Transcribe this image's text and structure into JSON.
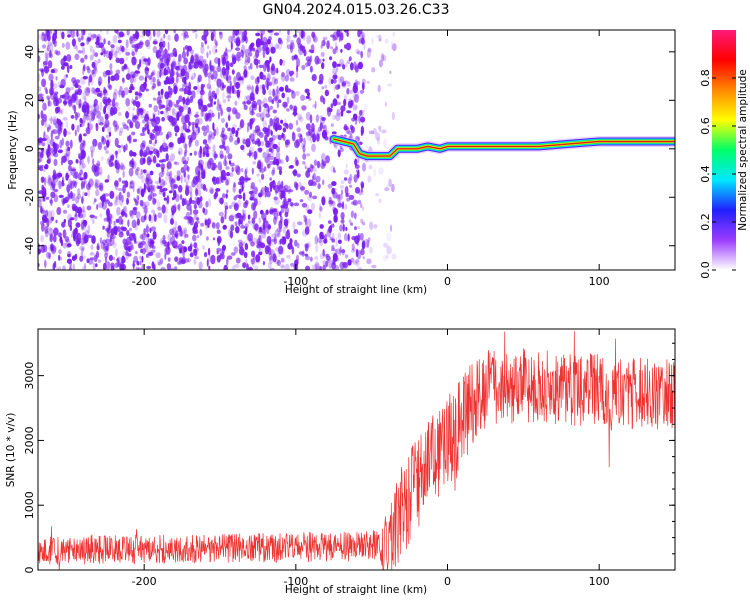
{
  "title": "GN04.2024.015.03.26.C33",
  "colors": {
    "snr_line": "#ee3333",
    "spectrogram_noise": "#7a1df0",
    "ridge_peak": "#e21a1a"
  },
  "chart_data": [
    {
      "type": "heatmap",
      "name_key": "spectrogram",
      "xlabel": "Height of straight line (km)",
      "ylabel": "Frequency (Hz)",
      "xlim": [
        -270,
        150
      ],
      "ylim": [
        -50,
        49
      ],
      "x_ticks": [
        -200,
        -100,
        0,
        100
      ],
      "y_ticks": [
        -40,
        -20,
        0,
        20,
        40
      ],
      "grid": false,
      "colorbar": {
        "label": "Normalized spectral amplitude",
        "range": [
          0,
          1
        ],
        "ticks": [
          "0.0",
          "0.2",
          "0.4",
          "0.6",
          "0.8"
        ],
        "colormap": [
          "#ffffff",
          "#9b3cff",
          "#2020ff",
          "#00e8ff",
          "#00ff66",
          "#ffff00",
          "#ff8800",
          "#ff0000",
          "#ff1a7a"
        ]
      },
      "noise_region": {
        "x_from": -270,
        "x_to": -55,
        "sparse_to": -35
      },
      "ridge": [
        {
          "x": -75,
          "f": 4
        },
        {
          "x": -62,
          "f": 2
        },
        {
          "x": -58,
          "f": -2
        },
        {
          "x": -53,
          "f": -3
        },
        {
          "x": -45,
          "f": -3
        },
        {
          "x": -38,
          "f": -3
        },
        {
          "x": -33,
          "f": 0
        },
        {
          "x": -20,
          "f": 0
        },
        {
          "x": -13,
          "f": 1
        },
        {
          "x": -5,
          "f": 0
        },
        {
          "x": 0,
          "f": 1
        },
        {
          "x": 15,
          "f": 1
        },
        {
          "x": 40,
          "f": 1
        },
        {
          "x": 60,
          "f": 1
        },
        {
          "x": 80,
          "f": 2
        },
        {
          "x": 100,
          "f": 3
        },
        {
          "x": 125,
          "f": 3
        },
        {
          "x": 150,
          "f": 3
        }
      ]
    },
    {
      "type": "line",
      "name_key": "snr",
      "xlabel": "Height of straight line (km)",
      "ylabel": "SNR (10 * v/v)",
      "xlim": [
        -270,
        150
      ],
      "ylim": [
        0,
        3720
      ],
      "x_ticks": [
        -200,
        -100,
        0,
        100
      ],
      "y_ticks": [
        0,
        1000,
        2000,
        3000
      ],
      "grid": false,
      "trend": [
        {
          "x": -270,
          "y": 300
        },
        {
          "x": -150,
          "y": 330
        },
        {
          "x": -60,
          "y": 360
        },
        {
          "x": -40,
          "y": 400
        },
        {
          "x": -30,
          "y": 900
        },
        {
          "x": -20,
          "y": 1300
        },
        {
          "x": -10,
          "y": 1650
        },
        {
          "x": 0,
          "y": 1900
        },
        {
          "x": 10,
          "y": 2300
        },
        {
          "x": 20,
          "y": 2700
        },
        {
          "x": 30,
          "y": 2850
        },
        {
          "x": 60,
          "y": 2850
        },
        {
          "x": 100,
          "y": 2760
        },
        {
          "x": 150,
          "y": 2700
        }
      ],
      "spread": [
        {
          "x": -270,
          "d": 220
        },
        {
          "x": -45,
          "d": 240
        },
        {
          "x": -40,
          "d": 700
        },
        {
          "x": 0,
          "d": 800
        },
        {
          "x": 20,
          "d": 600
        },
        {
          "x": 150,
          "d": 550
        }
      ]
    }
  ]
}
